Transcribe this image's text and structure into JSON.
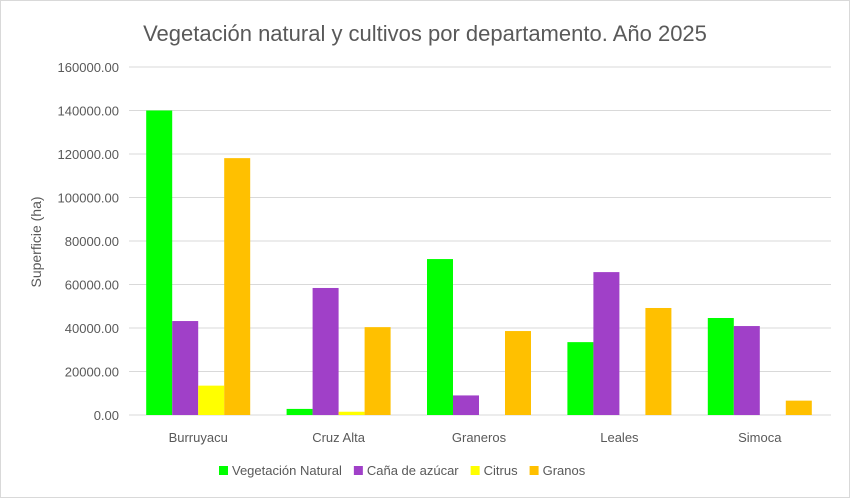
{
  "chart_data": {
    "type": "bar",
    "title": "Vegetación natural y cultivos por departamento. Año 2025",
    "xlabel": "",
    "ylabel": "Superficie (ha)",
    "ylim": [
      0,
      160000
    ],
    "yticks": [
      "0.00",
      "20000.00",
      "40000.00",
      "60000.00",
      "80000.00",
      "100000.00",
      "120000.00",
      "140000.00",
      "160000.00"
    ],
    "grid": true,
    "legend": "bottom",
    "categories": [
      "Burruyacu",
      "Cruz Alta",
      "Graneros",
      "Leales",
      "Simoca"
    ],
    "series": [
      {
        "name": "Vegetación Natural",
        "color": "#00ff00",
        "values": [
          140000,
          2800,
          71700,
          33500,
          44600
        ]
      },
      {
        "name": "Caña de azúcar",
        "color": "#a040c8",
        "values": [
          43200,
          58400,
          9000,
          65700,
          40900
        ]
      },
      {
        "name": "Citrus",
        "color": "#ffff00",
        "values": [
          13500,
          1500,
          0,
          0,
          0
        ]
      },
      {
        "name": "Granos",
        "color": "#ffc000",
        "values": [
          118100,
          40400,
          38600,
          49200,
          6600
        ]
      }
    ]
  }
}
